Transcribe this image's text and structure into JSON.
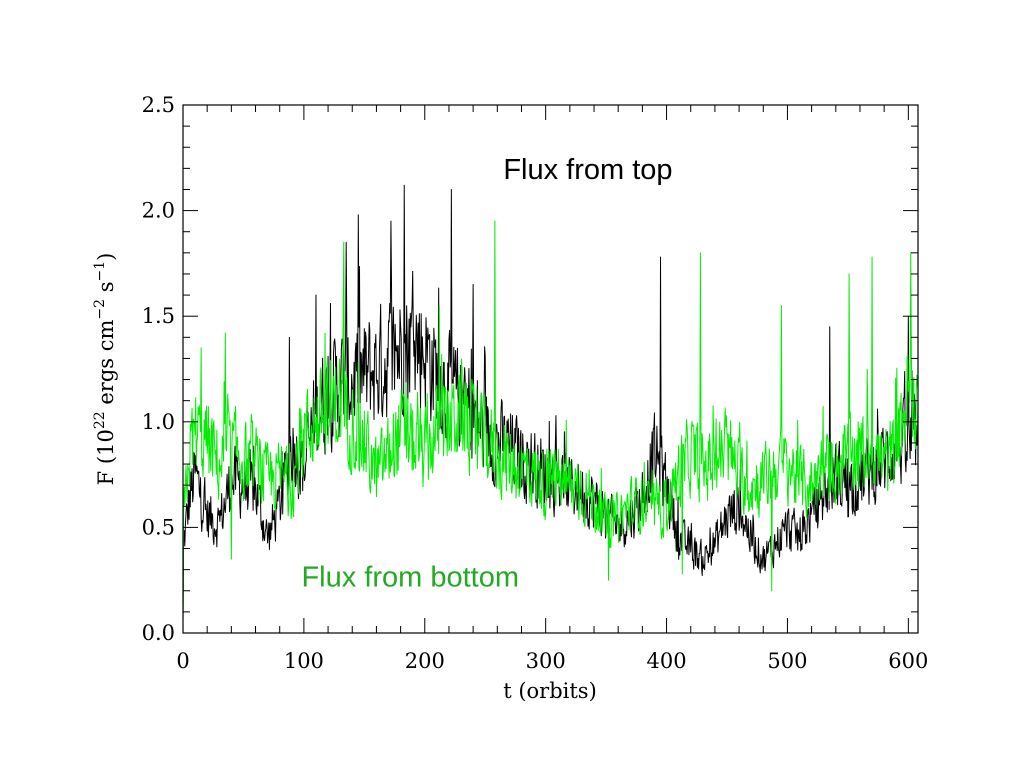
{
  "chart_data": {
    "type": "line",
    "xlabel": "t (orbits)",
    "ylabel": {
      "prefix": "F (10",
      "exp1": "22",
      "mid1": " ergs cm",
      "exp2": "−2",
      "mid2": " s",
      "exp3": "−1",
      "suffix": ")"
    },
    "xlim": [
      0,
      608
    ],
    "ylim": [
      0.0,
      2.5
    ],
    "xticks": [
      0,
      100,
      200,
      300,
      400,
      500,
      600
    ],
    "xtick_labels": [
      "0",
      "100",
      "200",
      "300",
      "400",
      "500",
      "600"
    ],
    "yticks": [
      0.0,
      0.5,
      1.0,
      1.5,
      2.0,
      2.5
    ],
    "ytick_labels": [
      "0.0",
      "0.5",
      "1.0",
      "1.5",
      "2.0",
      "2.5"
    ],
    "grid": false,
    "annotations": [
      {
        "text": "Flux from top",
        "x": 265,
        "y": 2.15,
        "color": "#000000"
      },
      {
        "text": "Flux from bottom",
        "x": 98,
        "y": 0.22,
        "color": "#22aa22"
      }
    ],
    "series": [
      {
        "color": "#000000",
        "baseline": {
          "x": [
            0,
            5,
            10,
            20,
            30,
            40,
            50,
            60,
            70,
            80,
            90,
            100,
            110,
            120,
            130,
            140,
            150,
            160,
            170,
            180,
            190,
            200,
            210,
            220,
            230,
            240,
            250,
            260,
            270,
            280,
            290,
            300,
            310,
            320,
            330,
            340,
            350,
            360,
            370,
            380,
            390,
            400,
            410,
            420,
            430,
            440,
            450,
            460,
            470,
            480,
            490,
            500,
            510,
            520,
            530,
            540,
            550,
            560,
            570,
            580,
            590,
            600,
            608
          ],
          "y": [
            0.4,
            0.62,
            0.75,
            0.55,
            0.52,
            0.72,
            0.7,
            0.68,
            0.45,
            0.6,
            0.9,
            0.78,
            1.05,
            1.12,
            1.18,
            1.2,
            1.22,
            1.25,
            1.3,
            1.35,
            1.38,
            1.35,
            1.22,
            1.15,
            1.1,
            1.05,
            0.95,
            0.9,
            0.88,
            0.82,
            0.8,
            0.75,
            0.72,
            0.7,
            0.68,
            0.62,
            0.55,
            0.5,
            0.55,
            0.65,
            0.85,
            0.7,
            0.45,
            0.4,
            0.35,
            0.42,
            0.55,
            0.6,
            0.45,
            0.35,
            0.42,
            0.5,
            0.45,
            0.55,
            0.65,
            0.75,
            0.7,
            0.72,
            0.78,
            0.82,
            0.9,
            0.88,
            0.92
          ]
        },
        "spikes": [
          [
            183,
            2.12
          ],
          [
            145,
            1.98
          ],
          [
            222,
            2.1
          ],
          [
            395,
            1.78
          ],
          [
            135,
            1.85
          ],
          [
            172,
            1.95
          ],
          [
            240,
            1.65
          ],
          [
            110,
            1.6
          ],
          [
            88,
            1.4
          ],
          [
            600,
            1.5
          ],
          [
            535,
            1.45
          ]
        ]
      },
      {
        "color": "#00ee00",
        "baseline": {
          "x": [
            0,
            5,
            10,
            20,
            30,
            40,
            50,
            60,
            70,
            80,
            90,
            100,
            110,
            120,
            130,
            140,
            150,
            160,
            170,
            180,
            190,
            200,
            210,
            220,
            230,
            240,
            250,
            260,
            270,
            280,
            290,
            300,
            310,
            320,
            330,
            340,
            350,
            360,
            370,
            380,
            390,
            400,
            410,
            420,
            430,
            440,
            450,
            460,
            470,
            480,
            490,
            500,
            510,
            520,
            530,
            540,
            550,
            560,
            570,
            580,
            590,
            600,
            608
          ],
          "y": [
            0.5,
            0.85,
            0.95,
            0.9,
            0.8,
            0.88,
            0.82,
            0.8,
            0.72,
            0.75,
            0.7,
            0.95,
            1.0,
            1.05,
            1.1,
            1.0,
            0.9,
            0.75,
            0.85,
            0.95,
            0.9,
            0.85,
            0.95,
            1.0,
            1.05,
            0.95,
            0.9,
            0.85,
            0.8,
            0.78,
            0.75,
            0.7,
            0.72,
            0.7,
            0.68,
            0.62,
            0.52,
            0.55,
            0.6,
            0.62,
            0.58,
            0.6,
            0.75,
            0.85,
            0.78,
            0.82,
            0.88,
            0.75,
            0.7,
            0.72,
            0.78,
            0.8,
            0.72,
            0.7,
            0.78,
            0.8,
            0.82,
            0.85,
            0.88,
            0.8,
            0.85,
            1.15,
            1.1
          ]
        },
        "spikes": [
          [
            133,
            1.85
          ],
          [
            258,
            1.95
          ],
          [
            428,
            1.8
          ],
          [
            570,
            1.78
          ],
          [
            551,
            1.7
          ],
          [
            602,
            1.8
          ],
          [
            495,
            1.55
          ],
          [
            15,
            1.35
          ],
          [
            35,
            1.42
          ],
          [
            212,
            1.55
          ],
          [
            40,
            0.35
          ],
          [
            413,
            0.28
          ],
          [
            487,
            0.2
          ],
          [
            352,
            0.25
          ]
        ]
      }
    ]
  }
}
